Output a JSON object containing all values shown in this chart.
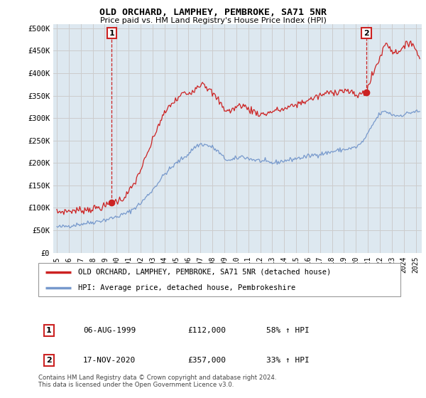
{
  "title": "OLD ORCHARD, LAMPHEY, PEMBROKE, SA71 5NR",
  "subtitle": "Price paid vs. HM Land Registry's House Price Index (HPI)",
  "ylabel_ticks": [
    "£0",
    "£50K",
    "£100K",
    "£150K",
    "£200K",
    "£250K",
    "£300K",
    "£350K",
    "£400K",
    "£450K",
    "£500K"
  ],
  "ytick_values": [
    0,
    50000,
    100000,
    150000,
    200000,
    250000,
    300000,
    350000,
    400000,
    450000,
    500000
  ],
  "ylim": [
    0,
    510000
  ],
  "xlim_start": 1994.7,
  "xlim_end": 2025.5,
  "grid_color": "#cccccc",
  "hpi_color": "#7799cc",
  "price_color": "#cc2222",
  "bg_color": "#dde8f0",
  "background_color": "#ffffff",
  "sale1_x": 1999.58,
  "sale1_y": 112000,
  "sale2_x": 2020.88,
  "sale2_y": 357000,
  "legend_label_price": "OLD ORCHARD, LAMPHEY, PEMBROKE, SA71 5NR (detached house)",
  "legend_label_hpi": "HPI: Average price, detached house, Pembrokeshire",
  "table_rows": [
    [
      "1",
      "06-AUG-1999",
      "£112,000",
      "58% ↑ HPI"
    ],
    [
      "2",
      "17-NOV-2020",
      "£357,000",
      "33% ↑ HPI"
    ]
  ],
  "footer": "Contains HM Land Registry data © Crown copyright and database right 2024.\nThis data is licensed under the Open Government Licence v3.0.",
  "xtick_years": [
    1995,
    1996,
    1997,
    1998,
    1999,
    2000,
    2001,
    2002,
    2003,
    2004,
    2005,
    2006,
    2007,
    2008,
    2009,
    2010,
    2011,
    2012,
    2013,
    2014,
    2015,
    2016,
    2017,
    2018,
    2019,
    2020,
    2021,
    2022,
    2023,
    2024,
    2025
  ],
  "hpi_key_points": [
    [
      1995.0,
      57000
    ],
    [
      1995.5,
      58000
    ],
    [
      1996.0,
      60000
    ],
    [
      1997.0,
      64000
    ],
    [
      1998.0,
      68000
    ],
    [
      1999.0,
      73000
    ],
    [
      2000.0,
      80000
    ],
    [
      2001.0,
      90000
    ],
    [
      2002.0,
      110000
    ],
    [
      2003.0,
      140000
    ],
    [
      2004.0,
      175000
    ],
    [
      2005.0,
      200000
    ],
    [
      2006.0,
      220000
    ],
    [
      2006.5,
      235000
    ],
    [
      2007.0,
      242000
    ],
    [
      2007.5,
      240000
    ],
    [
      2008.0,
      235000
    ],
    [
      2008.5,
      225000
    ],
    [
      2009.0,
      210000
    ],
    [
      2009.5,
      205000
    ],
    [
      2010.0,
      210000
    ],
    [
      2010.5,
      215000
    ],
    [
      2011.0,
      210000
    ],
    [
      2011.5,
      207000
    ],
    [
      2012.0,
      205000
    ],
    [
      2012.5,
      202000
    ],
    [
      2013.0,
      200000
    ],
    [
      2013.5,
      202000
    ],
    [
      2014.0,
      205000
    ],
    [
      2014.5,
      207000
    ],
    [
      2015.0,
      210000
    ],
    [
      2015.5,
      212000
    ],
    [
      2016.0,
      215000
    ],
    [
      2016.5,
      218000
    ],
    [
      2017.0,
      220000
    ],
    [
      2017.5,
      222000
    ],
    [
      2018.0,
      225000
    ],
    [
      2018.5,
      228000
    ],
    [
      2019.0,
      230000
    ],
    [
      2019.5,
      232000
    ],
    [
      2020.0,
      235000
    ],
    [
      2020.5,
      245000
    ],
    [
      2021.0,
      265000
    ],
    [
      2021.5,
      290000
    ],
    [
      2022.0,
      310000
    ],
    [
      2022.5,
      315000
    ],
    [
      2023.0,
      308000
    ],
    [
      2023.5,
      305000
    ],
    [
      2024.0,
      308000
    ],
    [
      2024.5,
      312000
    ],
    [
      2025.0,
      315000
    ],
    [
      2025.3,
      313000
    ]
  ],
  "price_key_points": [
    [
      1995.0,
      90000
    ],
    [
      1995.5,
      92000
    ],
    [
      1996.0,
      93000
    ],
    [
      1997.0,
      95000
    ],
    [
      1998.0,
      98000
    ],
    [
      1999.0,
      103000
    ],
    [
      1999.58,
      112000
    ],
    [
      2000.0,
      115000
    ],
    [
      2000.5,
      120000
    ],
    [
      2001.0,
      135000
    ],
    [
      2001.5,
      155000
    ],
    [
      2002.0,
      185000
    ],
    [
      2002.5,
      215000
    ],
    [
      2003.0,
      250000
    ],
    [
      2003.5,
      285000
    ],
    [
      2004.0,
      310000
    ],
    [
      2004.5,
      330000
    ],
    [
      2005.0,
      340000
    ],
    [
      2005.5,
      355000
    ],
    [
      2006.0,
      355000
    ],
    [
      2006.5,
      365000
    ],
    [
      2007.0,
      375000
    ],
    [
      2007.2,
      382000
    ],
    [
      2007.5,
      370000
    ],
    [
      2008.0,
      355000
    ],
    [
      2008.5,
      340000
    ],
    [
      2009.0,
      320000
    ],
    [
      2009.5,
      315000
    ],
    [
      2010.0,
      325000
    ],
    [
      2010.5,
      330000
    ],
    [
      2011.0,
      320000
    ],
    [
      2011.5,
      315000
    ],
    [
      2012.0,
      308000
    ],
    [
      2012.5,
      310000
    ],
    [
      2013.0,
      315000
    ],
    [
      2013.5,
      318000
    ],
    [
      2014.0,
      320000
    ],
    [
      2014.5,
      325000
    ],
    [
      2015.0,
      330000
    ],
    [
      2015.5,
      335000
    ],
    [
      2016.0,
      340000
    ],
    [
      2016.5,
      345000
    ],
    [
      2017.0,
      350000
    ],
    [
      2017.5,
      355000
    ],
    [
      2018.0,
      358000
    ],
    [
      2018.5,
      360000
    ],
    [
      2019.0,
      362000
    ],
    [
      2019.5,
      358000
    ],
    [
      2020.0,
      350000
    ],
    [
      2020.5,
      355000
    ],
    [
      2020.88,
      357000
    ],
    [
      2021.0,
      368000
    ],
    [
      2021.3,
      390000
    ],
    [
      2021.6,
      410000
    ],
    [
      2022.0,
      435000
    ],
    [
      2022.3,
      455000
    ],
    [
      2022.5,
      468000
    ],
    [
      2022.8,
      460000
    ],
    [
      2023.0,
      450000
    ],
    [
      2023.3,
      445000
    ],
    [
      2023.6,
      452000
    ],
    [
      2024.0,
      455000
    ],
    [
      2024.3,
      465000
    ],
    [
      2024.6,
      472000
    ],
    [
      2024.9,
      460000
    ],
    [
      2025.0,
      450000
    ],
    [
      2025.3,
      435000
    ]
  ]
}
